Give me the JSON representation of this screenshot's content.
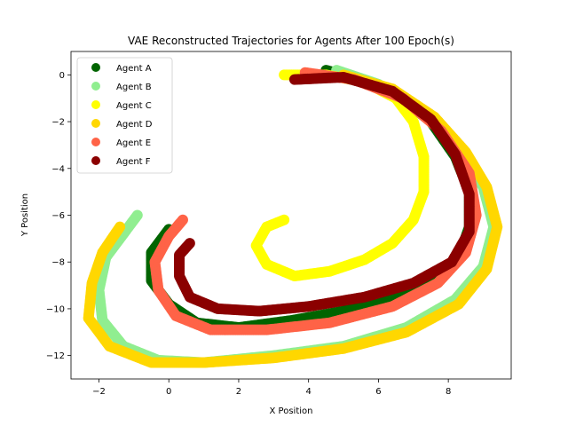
{
  "chart_data": {
    "type": "scatter",
    "title": "VAE Reconstructed Trajectories for Agents After 100 Epoch(s)",
    "xlabel": "X Position",
    "ylabel": "Y Position",
    "xlim": [
      -2.8,
      9.8
    ],
    "ylim": [
      -13.0,
      1.0
    ],
    "xticks": [
      -2,
      0,
      2,
      4,
      6,
      8
    ],
    "yticks": [
      0,
      -2,
      -4,
      -6,
      -8,
      -10,
      -12
    ],
    "grid": false,
    "legend_position": "top-left",
    "series": [
      {
        "name": "Agent A",
        "color": "#006400",
        "points": [
          [
            4.5,
            0.2
          ],
          [
            5.5,
            -0.2
          ],
          [
            6.5,
            -0.8
          ],
          [
            7.5,
            -2.0
          ],
          [
            8.2,
            -3.5
          ],
          [
            8.6,
            -5.0
          ],
          [
            8.6,
            -6.5
          ],
          [
            8.3,
            -7.8
          ],
          [
            7.5,
            -8.8
          ],
          [
            6.3,
            -9.6
          ],
          [
            5.0,
            -10.1
          ],
          [
            3.5,
            -10.5
          ],
          [
            2.0,
            -10.8
          ],
          [
            0.8,
            -10.6
          ],
          [
            0.0,
            -9.8
          ],
          [
            -0.5,
            -8.8
          ],
          [
            -0.5,
            -7.6
          ],
          [
            0.0,
            -6.6
          ]
        ]
      },
      {
        "name": "Agent B",
        "color": "#90ee90",
        "points": [
          [
            4.8,
            0.2
          ],
          [
            6.0,
            -0.4
          ],
          [
            7.2,
            -1.5
          ],
          [
            8.2,
            -3.0
          ],
          [
            9.0,
            -4.8
          ],
          [
            9.3,
            -6.5
          ],
          [
            9.0,
            -8.2
          ],
          [
            8.2,
            -9.6
          ],
          [
            6.8,
            -10.8
          ],
          [
            5.0,
            -11.6
          ],
          [
            3.0,
            -12.0
          ],
          [
            1.0,
            -12.3
          ],
          [
            -0.3,
            -12.2
          ],
          [
            -1.3,
            -11.6
          ],
          [
            -1.9,
            -10.5
          ],
          [
            -2.0,
            -9.2
          ],
          [
            -1.8,
            -7.8
          ],
          [
            -1.2,
            -6.6
          ],
          [
            -0.9,
            -6.0
          ]
        ]
      },
      {
        "name": "Agent C",
        "color": "#ffff00",
        "points": [
          [
            3.3,
            0.0
          ],
          [
            4.5,
            0.0
          ],
          [
            5.6,
            -0.3
          ],
          [
            6.5,
            -1.0
          ],
          [
            7.0,
            -2.0
          ],
          [
            7.3,
            -3.5
          ],
          [
            7.3,
            -5.0
          ],
          [
            7.0,
            -6.2
          ],
          [
            6.4,
            -7.2
          ],
          [
            5.6,
            -7.9
          ],
          [
            4.6,
            -8.4
          ],
          [
            3.6,
            -8.6
          ],
          [
            2.8,
            -8.1
          ],
          [
            2.5,
            -7.3
          ],
          [
            2.8,
            -6.5
          ],
          [
            3.3,
            -6.2
          ]
        ]
      },
      {
        "name": "Agent D",
        "color": "#ffd700",
        "points": [
          [
            5.0,
            0.0
          ],
          [
            6.4,
            -0.6
          ],
          [
            7.6,
            -1.8
          ],
          [
            8.5,
            -3.3
          ],
          [
            9.1,
            -4.8
          ],
          [
            9.4,
            -6.5
          ],
          [
            9.1,
            -8.3
          ],
          [
            8.3,
            -9.8
          ],
          [
            6.8,
            -11.0
          ],
          [
            5.0,
            -11.7
          ],
          [
            3.0,
            -12.1
          ],
          [
            1.0,
            -12.3
          ],
          [
            -0.5,
            -12.3
          ],
          [
            -1.7,
            -11.6
          ],
          [
            -2.3,
            -10.4
          ],
          [
            -2.2,
            -8.9
          ],
          [
            -1.9,
            -7.6
          ],
          [
            -1.4,
            -6.5
          ]
        ]
      },
      {
        "name": "Agent E",
        "color": "#ff6347",
        "points": [
          [
            3.9,
            0.1
          ],
          [
            5.3,
            -0.2
          ],
          [
            6.7,
            -1.0
          ],
          [
            7.8,
            -2.4
          ],
          [
            8.6,
            -4.2
          ],
          [
            8.8,
            -6.0
          ],
          [
            8.5,
            -7.6
          ],
          [
            7.7,
            -8.9
          ],
          [
            6.4,
            -9.9
          ],
          [
            4.6,
            -10.6
          ],
          [
            2.8,
            -10.9
          ],
          [
            1.2,
            -10.9
          ],
          [
            0.2,
            -10.3
          ],
          [
            -0.3,
            -9.2
          ],
          [
            -0.4,
            -8.0
          ],
          [
            0.0,
            -6.9
          ],
          [
            0.4,
            -6.2
          ]
        ]
      },
      {
        "name": "Agent F",
        "color": "#8b0000",
        "points": [
          [
            3.6,
            -0.2
          ],
          [
            5.0,
            -0.1
          ],
          [
            6.4,
            -0.7
          ],
          [
            7.5,
            -1.9
          ],
          [
            8.2,
            -3.4
          ],
          [
            8.6,
            -5.1
          ],
          [
            8.6,
            -6.7
          ],
          [
            8.1,
            -8.0
          ],
          [
            7.0,
            -8.9
          ],
          [
            5.6,
            -9.5
          ],
          [
            4.0,
            -9.9
          ],
          [
            2.6,
            -10.1
          ],
          [
            1.4,
            -10.0
          ],
          [
            0.6,
            -9.5
          ],
          [
            0.3,
            -8.6
          ],
          [
            0.3,
            -7.7
          ],
          [
            0.6,
            -7.2
          ]
        ]
      }
    ]
  }
}
